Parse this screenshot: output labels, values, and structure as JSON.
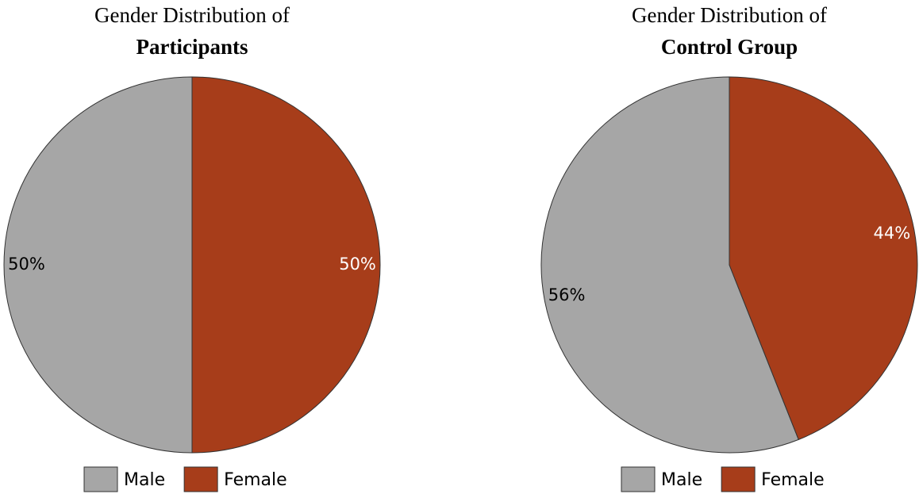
{
  "chart_data": [
    {
      "type": "pie",
      "title": "Gender Distribution of",
      "subtitle": "Participants",
      "categories": [
        "Male",
        "Female"
      ],
      "values": [
        50,
        50
      ],
      "value_labels": [
        "50%",
        "50%"
      ],
      "colors": [
        "#a6a6a6",
        "#a73d1a"
      ],
      "label_colors": [
        "#000000",
        "#ffffff"
      ],
      "legend": "bottom"
    },
    {
      "type": "pie",
      "title": "Gender Distribution of",
      "subtitle": "Control Group",
      "categories": [
        "Male",
        "Female"
      ],
      "values": [
        56,
        44
      ],
      "value_labels": [
        "56%",
        "44%"
      ],
      "colors": [
        "#a6a6a6",
        "#a73d1a"
      ],
      "label_colors": [
        "#000000",
        "#ffffff"
      ],
      "legend": "bottom"
    }
  ]
}
